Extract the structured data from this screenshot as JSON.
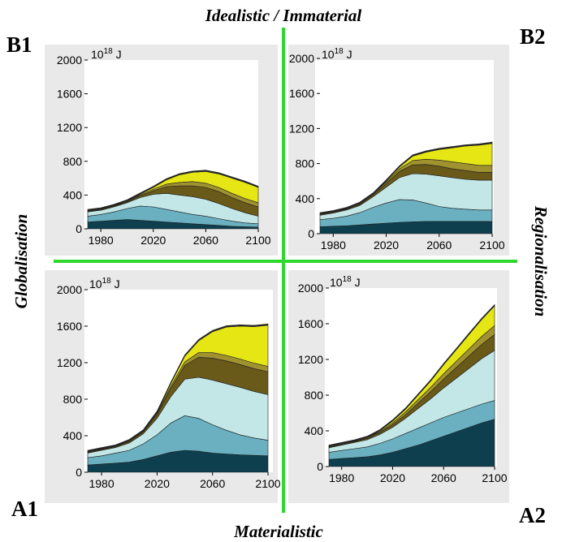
{
  "axis_titles": {
    "top": "Idealistic / Immaterial",
    "bottom": "Materialistic",
    "left": "Globalisation",
    "right": "Regionalisation"
  },
  "unit_label": {
    "base": "10",
    "exponent": "18",
    "suffix": "J"
  },
  "colors": {
    "layers": [
      "#0d3f4f",
      "#6ab0c0",
      "#c3e6e6",
      "#6a5a1a",
      "#a0922e",
      "#e6e615",
      "#2b2b2b"
    ],
    "panel_bg": "#e9e9e9",
    "plot_bg": "#ffffff",
    "divider": "#2fd82f"
  },
  "chart_data": [
    {
      "panel": "B1",
      "type": "area",
      "stacked": true,
      "x": [
        1970,
        1980,
        1990,
        2000,
        2010,
        2020,
        2030,
        2040,
        2050,
        2060,
        2070,
        2080,
        2090,
        2100
      ],
      "xticks": [
        "1980",
        "2020",
        "2060",
        "2100"
      ],
      "yticks": [
        "0",
        "400",
        "800",
        "1200",
        "1600",
        "2000"
      ],
      "xlim": [
        1970,
        2100
      ],
      "ylim": [
        0,
        2000
      ],
      "series": [
        {
          "values": [
            80,
            90,
            100,
            110,
            100,
            90,
            80,
            70,
            60,
            50,
            40,
            30,
            25,
            20
          ]
        },
        {
          "values": [
            70,
            80,
            100,
            130,
            170,
            170,
            150,
            130,
            110,
            100,
            80,
            60,
            45,
            40
          ]
        },
        {
          "values": [
            50,
            50,
            60,
            70,
            100,
            150,
            190,
            200,
            210,
            200,
            180,
            150,
            120,
            90
          ]
        },
        {
          "values": [
            10,
            10,
            10,
            10,
            20,
            40,
            80,
            110,
            130,
            140,
            140,
            130,
            120,
            110
          ]
        },
        {
          "values": [
            5,
            5,
            5,
            10,
            10,
            20,
            30,
            40,
            50,
            50,
            50,
            50,
            50,
            50
          ]
        },
        {
          "values": [
            0,
            0,
            0,
            0,
            10,
            20,
            50,
            90,
            110,
            140,
            160,
            180,
            190,
            180
          ]
        },
        {
          "values": [
            15,
            15,
            15,
            15,
            15,
            15,
            15,
            15,
            15,
            15,
            15,
            15,
            15,
            15
          ]
        }
      ]
    },
    {
      "panel": "B2",
      "type": "area",
      "stacked": true,
      "x": [
        1970,
        1980,
        1990,
        2000,
        2010,
        2020,
        2030,
        2040,
        2050,
        2060,
        2070,
        2080,
        2090,
        2100
      ],
      "xticks": [
        "1980",
        "2020",
        "2060",
        "2100"
      ],
      "yticks": [
        "0",
        "400",
        "800",
        "1200",
        "1600",
        "2000"
      ],
      "xlim": [
        1970,
        2100
      ],
      "ylim": [
        0,
        2000
      ],
      "series": [
        {
          "values": [
            80,
            85,
            90,
            100,
            110,
            120,
            130,
            135,
            140,
            140,
            140,
            140,
            140,
            140
          ]
        },
        {
          "values": [
            80,
            90,
            110,
            140,
            190,
            230,
            260,
            250,
            210,
            170,
            150,
            140,
            130,
            130
          ]
        },
        {
          "values": [
            50,
            60,
            70,
            80,
            120,
            180,
            250,
            300,
            330,
            350,
            350,
            340,
            340,
            340
          ]
        },
        {
          "values": [
            10,
            10,
            10,
            15,
            20,
            40,
            70,
            100,
            110,
            110,
            100,
            100,
            90,
            90
          ]
        },
        {
          "values": [
            5,
            5,
            5,
            10,
            10,
            20,
            30,
            50,
            60,
            70,
            80,
            80,
            80,
            80
          ]
        },
        {
          "values": [
            0,
            0,
            0,
            0,
            0,
            10,
            20,
            50,
            80,
            120,
            160,
            200,
            230,
            250
          ]
        },
        {
          "values": [
            15,
            15,
            15,
            15,
            15,
            15,
            15,
            15,
            15,
            15,
            15,
            15,
            15,
            15
          ]
        }
      ]
    },
    {
      "panel": "A1",
      "type": "area",
      "stacked": true,
      "x": [
        1970,
        1980,
        1990,
        2000,
        2010,
        2020,
        2030,
        2040,
        2050,
        2060,
        2070,
        2080,
        2090,
        2100
      ],
      "xticks": [
        "1980",
        "2020",
        "2060",
        "2100"
      ],
      "yticks": [
        "0",
        "400",
        "800",
        "1200",
        "1600",
        "2000"
      ],
      "xlim": [
        1970,
        2100
      ],
      "ylim": [
        0,
        2000
      ],
      "series": [
        {
          "values": [
            80,
            90,
            100,
            110,
            140,
            180,
            220,
            240,
            230,
            210,
            200,
            190,
            185,
            180
          ]
        },
        {
          "values": [
            80,
            90,
            110,
            130,
            170,
            230,
            320,
            380,
            360,
            310,
            260,
            220,
            190,
            170
          ]
        },
        {
          "values": [
            50,
            60,
            60,
            80,
            110,
            180,
            290,
            400,
            450,
            490,
            510,
            520,
            510,
            500
          ]
        },
        {
          "values": [
            10,
            10,
            10,
            15,
            20,
            40,
            90,
            150,
            220,
            240,
            250,
            250,
            250,
            250
          ]
        },
        {
          "values": [
            5,
            5,
            5,
            10,
            10,
            15,
            25,
            40,
            50,
            60,
            60,
            60,
            60,
            60
          ]
        },
        {
          "values": [
            0,
            0,
            0,
            0,
            0,
            10,
            30,
            60,
            130,
            230,
            310,
            360,
            400,
            450
          ]
        },
        {
          "values": [
            15,
            15,
            15,
            15,
            15,
            15,
            15,
            15,
            15,
            15,
            15,
            15,
            15,
            15
          ]
        }
      ]
    },
    {
      "panel": "A2",
      "type": "area",
      "stacked": true,
      "x": [
        1970,
        1980,
        1990,
        2000,
        2010,
        2020,
        2030,
        2040,
        2050,
        2060,
        2070,
        2080,
        2090,
        2100
      ],
      "xticks": [
        "1980",
        "2020",
        "2060",
        "2100"
      ],
      "yticks": [
        "0",
        "400",
        "800",
        "1200",
        "1600",
        "2000"
      ],
      "xlim": [
        1970,
        2100
      ],
      "ylim": [
        0,
        2000
      ],
      "series": [
        {
          "values": [
            80,
            90,
            100,
            110,
            130,
            160,
            200,
            240,
            290,
            340,
            390,
            440,
            490,
            530
          ]
        },
        {
          "values": [
            80,
            90,
            100,
            110,
            130,
            150,
            170,
            190,
            200,
            210,
            210,
            210,
            210,
            210
          ]
        },
        {
          "values": [
            50,
            60,
            70,
            80,
            100,
            130,
            170,
            220,
            270,
            330,
            390,
            450,
            510,
            560
          ]
        },
        {
          "values": [
            10,
            10,
            10,
            15,
            20,
            30,
            40,
            60,
            80,
            100,
            120,
            140,
            160,
            180
          ]
        },
        {
          "values": [
            5,
            5,
            5,
            10,
            10,
            20,
            30,
            40,
            50,
            60,
            70,
            80,
            90,
            100
          ]
        },
        {
          "values": [
            0,
            0,
            0,
            0,
            10,
            20,
            30,
            50,
            70,
            100,
            130,
            160,
            190,
            220
          ]
        },
        {
          "values": [
            15,
            15,
            15,
            15,
            15,
            15,
            15,
            15,
            15,
            15,
            15,
            15,
            15,
            15
          ]
        }
      ]
    }
  ]
}
